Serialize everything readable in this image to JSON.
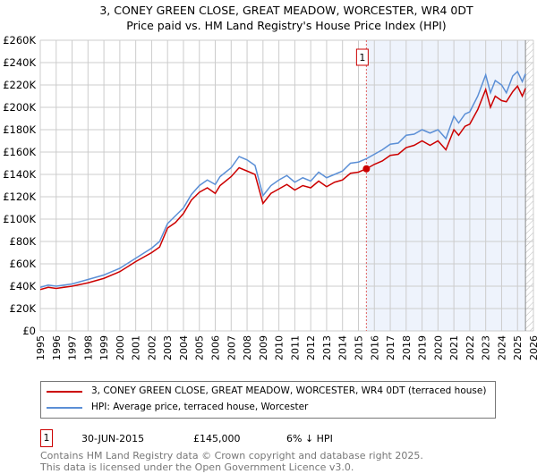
{
  "chart_data": {
    "type": "line",
    "title": "3, CONEY GREEN CLOSE, GREAT MEADOW, WORCESTER, WR4 0DT",
    "subtitle": "Price paid vs. HM Land Registry's House Price Index (HPI)",
    "xlim": [
      1995,
      2026
    ],
    "ylim": [
      0,
      260000
    ],
    "x_ticks": [
      "1995",
      "1996",
      "1997",
      "1998",
      "1999",
      "2000",
      "2001",
      "2002",
      "2003",
      "2004",
      "2005",
      "2006",
      "2007",
      "2008",
      "2009",
      "2010",
      "2011",
      "2012",
      "2013",
      "2014",
      "2015",
      "2016",
      "2017",
      "2018",
      "2019",
      "2020",
      "2021",
      "2022",
      "2023",
      "2024",
      "2025",
      "2026"
    ],
    "y_ticks": [
      {
        "v": 0,
        "label": "£0"
      },
      {
        "v": 20000,
        "label": "£20K"
      },
      {
        "v": 40000,
        "label": "£40K"
      },
      {
        "v": 60000,
        "label": "£60K"
      },
      {
        "v": 80000,
        "label": "£80K"
      },
      {
        "v": 100000,
        "label": "£100K"
      },
      {
        "v": 120000,
        "label": "£120K"
      },
      {
        "v": 140000,
        "label": "£140K"
      },
      {
        "v": 160000,
        "label": "£160K"
      },
      {
        "v": 180000,
        "label": "£180K"
      },
      {
        "v": 200000,
        "label": "£200K"
      },
      {
        "v": 220000,
        "label": "£220K"
      },
      {
        "v": 240000,
        "label": "£240K"
      },
      {
        "v": 260000,
        "label": "£260K"
      }
    ],
    "grid": true,
    "x": [
      1995,
      1995.5,
      1996,
      1997,
      1998,
      1999,
      2000,
      2001,
      2002,
      2002.5,
      2003,
      2003.5,
      2004,
      2004.5,
      2005,
      2005.5,
      2006,
      2006.3,
      2007,
      2007.5,
      2008,
      2008.5,
      2009,
      2009.5,
      2010,
      2010.5,
      2011,
      2011.5,
      2012,
      2012.5,
      2013,
      2013.5,
      2014,
      2014.5,
      2015,
      2015.5,
      2016,
      2016.5,
      2017,
      2017.5,
      2018,
      2018.5,
      2019,
      2019.5,
      2020,
      2020.5,
      2021,
      2021.3,
      2021.7,
      2022,
      2022.5,
      2023,
      2023.3,
      2023.6,
      2024,
      2024.3,
      2024.7,
      2025,
      2025.3,
      2025.5
    ],
    "series": [
      {
        "name": "3, CONEY GREEN CLOSE, GREAT MEADOW, WORCESTER, WR4 0DT (terraced house)",
        "color": "#cc0000",
        "values": [
          37000,
          39000,
          38000,
          40000,
          43000,
          47000,
          53000,
          62000,
          70000,
          75000,
          92000,
          97000,
          105000,
          117000,
          124000,
          128000,
          123000,
          130000,
          138000,
          146000,
          143000,
          140000,
          114000,
          123000,
          127000,
          131000,
          126000,
          130000,
          128000,
          134000,
          129000,
          133000,
          135000,
          141000,
          142000,
          145000,
          149000,
          152000,
          157000,
          158000,
          164000,
          166000,
          170000,
          166000,
          170000,
          162000,
          180000,
          175000,
          183000,
          185000,
          198000,
          216000,
          200000,
          210000,
          206000,
          205000,
          214000,
          219000,
          210000,
          217000
        ]
      },
      {
        "name": "HPI: Average price, terraced house, Worcester",
        "color": "#5b8fd6",
        "values": [
          39000,
          41000,
          40000,
          42000,
          46000,
          50000,
          56000,
          65000,
          74000,
          80000,
          96000,
          103000,
          110000,
          122000,
          130000,
          135000,
          131000,
          138000,
          146000,
          156000,
          153000,
          148000,
          121000,
          130000,
          135000,
          139000,
          133000,
          137000,
          134000,
          142000,
          137000,
          140000,
          143000,
          150000,
          151000,
          154000,
          158000,
          162000,
          167000,
          168000,
          175000,
          176000,
          180000,
          177000,
          180000,
          172000,
          192000,
          186000,
          194000,
          196000,
          210000,
          229000,
          213000,
          224000,
          220000,
          213000,
          228000,
          232000,
          223000,
          230000
        ]
      }
    ],
    "sales": [
      {
        "id": "1",
        "x": 2015.5,
        "value": 145000
      }
    ],
    "shaded_from": 2015.5,
    "hatched_from": 2025.5,
    "legend": "below"
  },
  "legend": {
    "items": [
      "3, CONEY GREEN CLOSE, GREAT MEADOW, WORCESTER, WR4 0DT (terraced house)",
      "HPI: Average price, terraced house, Worcester"
    ]
  },
  "transactions": [
    {
      "id": "1",
      "date": "30-JUN-2015",
      "price": "£145,000",
      "diff": "6% ↓ HPI"
    }
  ],
  "footer": {
    "line1": "Contains HM Land Registry data © Crown copyright and database right 2025.",
    "line2": "This data is licensed under the Open Government Licence v3.0."
  }
}
